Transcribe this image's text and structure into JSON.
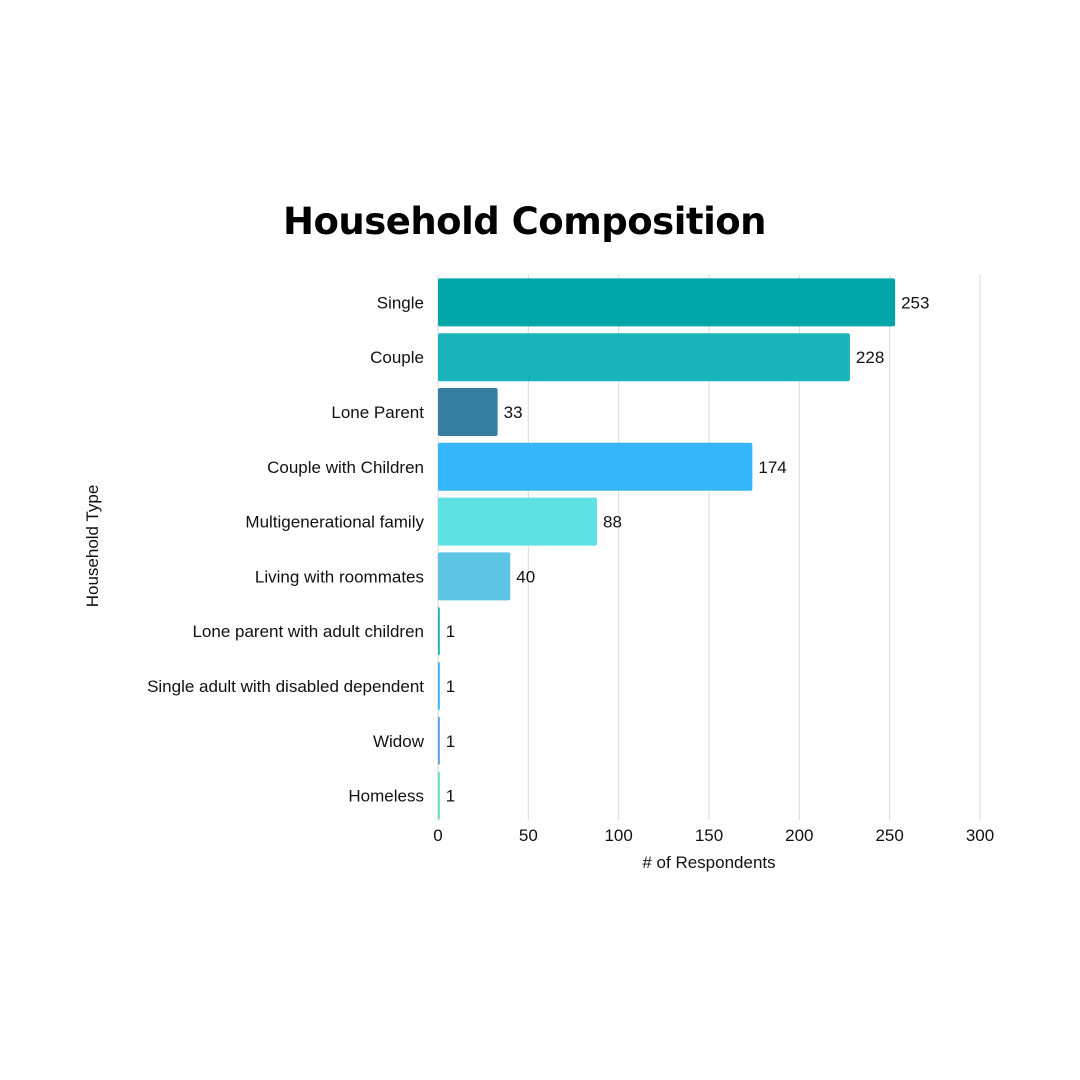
{
  "chart_data": {
    "type": "bar",
    "orientation": "horizontal",
    "title": "Household Composition",
    "xlabel": "# of Respondents",
    "ylabel": "Household Type",
    "categories": [
      "Single",
      "Couple",
      "Lone Parent",
      "Couple with Children",
      "Multigenerational family",
      "Living with roommates",
      "Lone parent with adult children",
      "Single adult with disabled dependent",
      "Widow",
      "Homeless"
    ],
    "values": [
      253,
      228,
      33,
      174,
      88,
      40,
      1,
      1,
      1,
      1
    ],
    "colors": [
      "#00a5a8",
      "#19b3ba",
      "#377ea3",
      "#38b6fc",
      "#5ee1e3",
      "#5ec4e3",
      "#19b3ba",
      "#38b6fc",
      "#5e9be3",
      "#5ee1c4"
    ],
    "xlim": [
      0,
      300
    ],
    "xticks": [
      0,
      50,
      100,
      150,
      200,
      250,
      300
    ],
    "grid": "vertical",
    "legend": "none",
    "data_labels": true
  }
}
